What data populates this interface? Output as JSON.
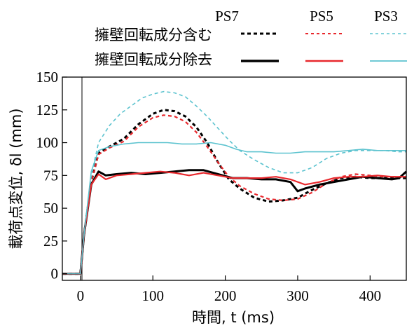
{
  "chart_data": {
    "type": "line",
    "xlabel": "時間, t (ms)",
    "ylabel": "載荷点変位, δl (mm)",
    "xlim": [
      -25,
      450
    ],
    "ylim": [
      -5,
      150
    ],
    "xticks": [
      0,
      100,
      200,
      300,
      400
    ],
    "yticks": [
      0,
      25,
      50,
      75,
      100,
      125,
      150
    ],
    "grid": false,
    "legend": {
      "placement": "top",
      "columns": [
        "PS7",
        "PS5",
        "PS3"
      ],
      "rows": [
        "擁壁回転成分含む",
        "擁壁回転成分除去"
      ]
    },
    "colors": {
      "PS7": "#000000",
      "PS5": "#e8282d",
      "PS3": "#5cc3cf"
    },
    "series": [
      {
        "name": "PS7",
        "condition": "擁壁回転成分含む",
        "style": "dashed",
        "color": "#000000",
        "x": [
          -25,
          0,
          5,
          15,
          25,
          40,
          60,
          80,
          100,
          115,
          130,
          145,
          160,
          175,
          190,
          205,
          220,
          240,
          260,
          280,
          300,
          320,
          340,
          360,
          380,
          400,
          420,
          440,
          450
        ],
        "y": [
          0,
          0,
          30,
          70,
          92,
          97,
          103,
          114,
          122,
          125,
          124,
          120,
          112,
          100,
          85,
          72,
          65,
          58,
          55,
          56,
          58,
          64,
          69,
          73,
          74,
          73,
          73,
          73,
          73
        ]
      },
      {
        "name": "PS5",
        "condition": "擁壁回転成分含む",
        "style": "dashed",
        "color": "#e8282d",
        "x": [
          -25,
          0,
          5,
          15,
          25,
          40,
          60,
          80,
          100,
          115,
          130,
          145,
          160,
          175,
          190,
          205,
          220,
          240,
          260,
          280,
          300,
          320,
          340,
          360,
          380,
          400,
          420,
          440,
          450
        ],
        "y": [
          0,
          0,
          30,
          70,
          91,
          96,
          101,
          112,
          119,
          121,
          120,
          116,
          108,
          97,
          85,
          74,
          67,
          61,
          57,
          56,
          57,
          62,
          69,
          74,
          76,
          75,
          74,
          74,
          74
        ]
      },
      {
        "name": "PS3",
        "condition": "擁壁回転成分含む",
        "style": "dashed",
        "color": "#5cc3cf",
        "x": [
          -25,
          0,
          5,
          15,
          25,
          40,
          55,
          70,
          85,
          100,
          115,
          130,
          145,
          160,
          175,
          190,
          205,
          220,
          240,
          260,
          280,
          300,
          320,
          340,
          360,
          380,
          400,
          420,
          440,
          450
        ],
        "y": [
          0,
          0,
          30,
          75,
          100,
          113,
          122,
          128,
          134,
          137,
          139,
          138,
          135,
          128,
          120,
          111,
          102,
          94,
          87,
          81,
          77,
          77,
          81,
          88,
          92,
          94,
          94,
          94,
          93,
          93
        ]
      },
      {
        "name": "PS7",
        "condition": "擁壁回転成分除去",
        "style": "solid",
        "color": "#000000",
        "x": [
          -25,
          0,
          5,
          15,
          25,
          35,
          50,
          70,
          90,
          110,
          130,
          150,
          170,
          190,
          210,
          230,
          250,
          270,
          290,
          300,
          310,
          330,
          350,
          370,
          390,
          410,
          430,
          440,
          450
        ],
        "y": [
          0,
          0,
          30,
          68,
          78,
          75,
          76,
          77,
          76,
          77,
          78,
          79,
          79,
          76,
          73,
          73,
          72,
          72,
          70,
          63,
          65,
          68,
          70,
          72,
          74,
          73,
          72,
          73,
          78
        ]
      },
      {
        "name": "PS5",
        "condition": "擁壁回転成分除去",
        "style": "solid",
        "color": "#e8282d",
        "x": [
          -25,
          0,
          5,
          15,
          25,
          35,
          50,
          70,
          90,
          110,
          130,
          150,
          170,
          190,
          210,
          230,
          250,
          270,
          290,
          310,
          330,
          350,
          370,
          390,
          410,
          430,
          450
        ],
        "y": [
          0,
          0,
          30,
          68,
          76,
          72,
          75,
          76,
          77,
          78,
          77,
          75,
          77,
          75,
          73,
          73,
          73,
          74,
          72,
          68,
          70,
          73,
          74,
          74,
          75,
          74,
          74
        ]
      },
      {
        "name": "PS3",
        "condition": "擁壁回転成分除去",
        "style": "solid",
        "color": "#5cc3cf",
        "x": [
          -25,
          0,
          5,
          15,
          25,
          40,
          60,
          80,
          100,
          120,
          140,
          160,
          180,
          200,
          215,
          230,
          250,
          270,
          290,
          310,
          330,
          350,
          370,
          390,
          410,
          430,
          450
        ],
        "y": [
          0,
          0,
          30,
          78,
          94,
          97,
          99,
          100,
          100,
          100,
          99,
          99,
          100,
          98,
          95,
          93,
          93,
          92,
          92,
          93,
          93,
          93,
          94,
          95,
          94,
          94,
          94
        ]
      }
    ]
  }
}
